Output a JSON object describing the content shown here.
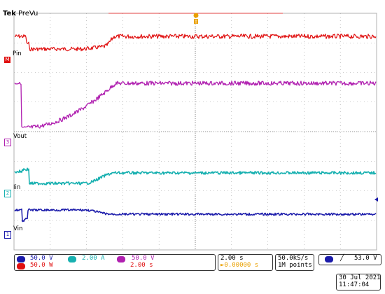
{
  "header": {
    "brand": "Tek",
    "mode": "PreVu"
  },
  "trigger_marker": {
    "label": "T"
  },
  "colors": {
    "ch1": "#1a1aaa",
    "ch2": "#17b0b0",
    "ch3": "#b020b0",
    "math": "#e01010",
    "grid": "#9a9a9a",
    "trigger": "#e9a000"
  },
  "channels": [
    {
      "id": "M",
      "label": "Pin",
      "color": "#e01010"
    },
    {
      "id": "3",
      "label": "Vout",
      "color": "#b020b0"
    },
    {
      "id": "2",
      "label": "Iin",
      "color": "#17b0b0"
    },
    {
      "id": "1",
      "label": "Vin",
      "color": "#1a1aaa"
    }
  ],
  "status": {
    "ch1_scale": "50.0 V",
    "ch2_scale": "2.00 A",
    "ch3_scale": "50.0 V",
    "math_scale": "50.0 W",
    "math_time": "2.00 s",
    "timebase": "2.00 s",
    "trigger_pos": "►0.00000 s",
    "sample_rate": "50.0kS/s",
    "record_len": "1M points",
    "trigger_level": "53.0 V",
    "date": "30 Jul  2021",
    "time": "11:47:04"
  }
}
